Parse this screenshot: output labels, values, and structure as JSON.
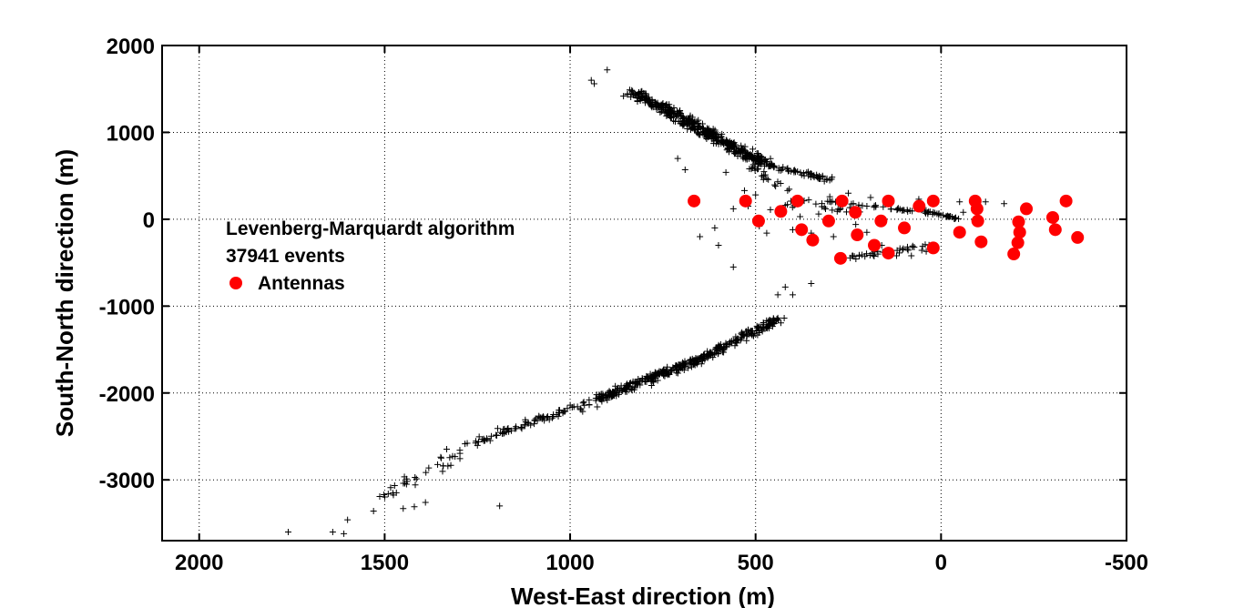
{
  "chart_data": {
    "type": "scatter",
    "title": "",
    "xlabel": "West-East direction (m)",
    "ylabel": "South-North direction (m)",
    "xlim": [
      2100,
      -500
    ],
    "ylim": [
      -3700,
      2000
    ],
    "x_reversed": true,
    "grid": true,
    "x_ticks": [
      2000,
      1500,
      1000,
      500,
      0,
      -500
    ],
    "x_tick_labels": [
      "2000",
      "1500",
      "1000",
      "500",
      "0",
      "-500"
    ],
    "y_ticks": [
      2000,
      1000,
      0,
      -1000,
      -2000,
      -3000
    ],
    "y_tick_labels": [
      "2000",
      "1000",
      "0",
      "-1000",
      "-2000",
      "-3000"
    ],
    "annotations": [
      "Levenberg-Marquardt algorithm",
      "37941 events"
    ],
    "legend": {
      "placement": "middle-left",
      "entries": [
        "Antennas"
      ]
    },
    "colors": {
      "antennas": "#ff0000",
      "events": "#000000",
      "grid": "#000000"
    },
    "series": [
      {
        "name": "Antennas",
        "marker": "circle",
        "color": "#ff0000",
        "points": [
          [
            666,
            210
          ],
          [
            527,
            210
          ],
          [
            387,
            210
          ],
          [
            267,
            210
          ],
          [
            142,
            210
          ],
          [
            21,
            210
          ],
          [
            -92,
            210
          ],
          [
            -337,
            210
          ],
          [
            -97,
            120
          ],
          [
            -230,
            120
          ],
          [
            492,
            -20
          ],
          [
            432,
            90
          ],
          [
            376,
            -120
          ],
          [
            303,
            -20
          ],
          [
            231,
            80
          ],
          [
            162,
            -20
          ],
          [
            99,
            -100
          ],
          [
            59,
            150
          ],
          [
            -99,
            -20
          ],
          [
            -209,
            -30
          ],
          [
            -301,
            20
          ],
          [
            346,
            -240
          ],
          [
            271,
            -450
          ],
          [
            226,
            -180
          ],
          [
            180,
            -300
          ],
          [
            142,
            -390
          ],
          [
            21,
            -330
          ],
          [
            -50,
            -150
          ],
          [
            -108,
            -260
          ],
          [
            -212,
            -150
          ],
          [
            -207,
            -270
          ],
          [
            -196,
            -400
          ],
          [
            -308,
            -120
          ],
          [
            -368,
            -210
          ]
        ]
      },
      {
        "name": "Events",
        "marker": "plus",
        "color": "#000000",
        "segments": [
          {
            "from": [
              830,
              1460
            ],
            "to": [
              610,
              950
            ],
            "count": 260,
            "spread": [
              40,
              55
            ]
          },
          {
            "from": [
              640,
              1020
            ],
            "to": [
              480,
              650
            ],
            "count": 190,
            "spread": [
              40,
              55
            ]
          },
          {
            "from": [
              480,
              640
            ],
            "to": [
              300,
              450
            ],
            "count": 60,
            "spread": [
              25,
              35
            ]
          },
          {
            "from": [
              580,
              900
            ],
            "to": [
              420,
              300
            ],
            "count": 30,
            "spread": [
              35,
              60
            ]
          },
          {
            "from": [
              310,
              210
            ],
            "to": [
              -10,
              50
            ],
            "count": 40,
            "spread": [
              15,
              20
            ]
          },
          {
            "from": [
              60,
              120
            ],
            "to": [
              -40,
              10
            ],
            "count": 25,
            "spread": [
              10,
              15
            ]
          },
          {
            "from": [
              440,
              -1150
            ],
            "to": [
              650,
              -1610
            ],
            "count": 160,
            "spread": [
              35,
              45
            ]
          },
          {
            "from": [
              650,
              -1600
            ],
            "to": [
              920,
              -2060
            ],
            "count": 230,
            "spread": [
              40,
              50
            ]
          },
          {
            "from": [
              900,
              -2050
            ],
            "to": [
              1250,
              -2550
            ],
            "count": 90,
            "spread": [
              40,
              55
            ]
          },
          {
            "from": [
              1250,
              -2550
            ],
            "to": [
              1500,
              -3200
            ],
            "count": 40,
            "spread": [
              45,
              70
            ]
          },
          {
            "from": [
              260,
              -450
            ],
            "to": [
              20,
              -300
            ],
            "count": 40,
            "spread": [
              40,
              50
            ]
          },
          {
            "from": [
              440,
              210
            ],
            "to": [
              250,
              100
            ],
            "count": 20,
            "spread": [
              60,
              70
            ]
          }
        ],
        "points": [
          [
            935,
            1560
          ],
          [
            900,
            1720
          ],
          [
            943,
            1600
          ],
          [
            1760,
            -3600
          ],
          [
            1640,
            -3600
          ],
          [
            1610,
            -3620
          ],
          [
            1600,
            -3460
          ],
          [
            1530,
            -3360
          ],
          [
            1450,
            -3330
          ],
          [
            1420,
            -3310
          ],
          [
            1390,
            -3260
          ],
          [
            1190,
            -3300
          ],
          [
            560,
            -550
          ],
          [
            440,
            -870
          ],
          [
            400,
            -870
          ],
          [
            350,
            -740
          ],
          [
            420,
            -780
          ],
          [
            710,
            700
          ],
          [
            690,
            570
          ],
          [
            580,
            540
          ],
          [
            530,
            330
          ],
          [
            500,
            280
          ],
          [
            460,
            110
          ],
          [
            490,
            -80
          ],
          [
            470,
            -160
          ],
          [
            500,
            -20
          ],
          [
            400,
            -120
          ],
          [
            350,
            -160
          ],
          [
            290,
            -200
          ],
          [
            -120,
            200
          ],
          [
            -170,
            180
          ],
          [
            -50,
            200
          ],
          [
            60,
            230
          ],
          [
            -20,
            30
          ],
          [
            -60,
            80
          ],
          [
            520,
            150
          ],
          [
            300,
            260
          ],
          [
            250,
            300
          ],
          [
            190,
            250
          ],
          [
            160,
            -300
          ],
          [
            120,
            -420
          ],
          [
            80,
            -420
          ],
          [
            40,
            -370
          ],
          [
            600,
            -300
          ],
          [
            650,
            -200
          ],
          [
            610,
            -100
          ],
          [
            560,
            120
          ],
          [
            420,
            160
          ],
          [
            380,
            30
          ],
          [
            330,
            60
          ],
          [
            280,
            90
          ],
          [
            230,
            -60
          ],
          [
            200,
            -150
          ]
        ]
      }
    ]
  }
}
